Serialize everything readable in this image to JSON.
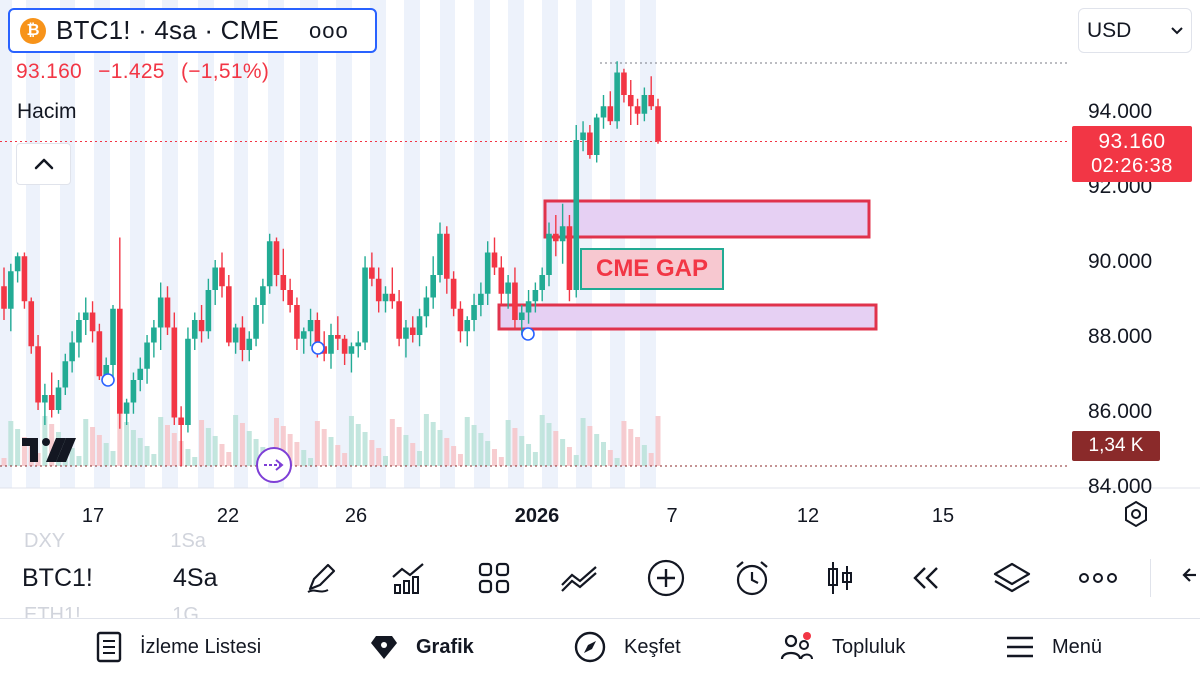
{
  "header": {
    "symbol_title": "BTC1! · 4sa · CME",
    "more_label": "ooo",
    "btc_glyph": "₿",
    "last_price": "93.160",
    "change": "−1.425",
    "change_pct": "(−1,51%)",
    "volume_label": "Hacim",
    "currency": "USD"
  },
  "price_tags": {
    "last_price": "93.160",
    "countdown": "02:26:38",
    "volume": "1,34 K"
  },
  "annotation": {
    "gap_label": "CME GAP"
  },
  "colors": {
    "up": "#22ab94",
    "down": "#f23645",
    "accent": "#2962ff",
    "gap_zone_fill": "#e6d0f3",
    "gap_zone_border": "#e0334c",
    "session_band": "#e6ecfa"
  },
  "chart_data": {
    "type": "candlestick",
    "y_axis": {
      "ticks": [
        "94.000",
        "92.000",
        "90.000",
        "88.000",
        "86.000",
        "84.000"
      ],
      "values": [
        94000,
        92000,
        90000,
        88000,
        86000,
        84000
      ]
    },
    "x_axis": {
      "ticks": [
        "17",
        "22",
        "26",
        "2026",
        "7",
        "12",
        "15"
      ],
      "bold_tick": "2026"
    },
    "last_price": 93160,
    "gap_zones": [
      {
        "low": 90700,
        "high": 91600
      },
      {
        "low": 88200,
        "high": 88800
      }
    ],
    "candles_ohlc": [
      [
        89300,
        89800,
        88400,
        88700
      ],
      [
        88700,
        89900,
        88100,
        89700
      ],
      [
        89700,
        90200,
        89400,
        90100
      ],
      [
        90100,
        90200,
        88700,
        88900
      ],
      [
        88900,
        89000,
        87500,
        87700
      ],
      [
        87700,
        88000,
        86000,
        86200
      ],
      [
        86200,
        86700,
        85600,
        86400
      ],
      [
        86400,
        87000,
        85800,
        86000
      ],
      [
        86000,
        86800,
        85900,
        86600
      ],
      [
        86600,
        87500,
        86400,
        87300
      ],
      [
        87300,
        88100,
        87000,
        87800
      ],
      [
        87800,
        88600,
        87400,
        88400
      ],
      [
        88400,
        89000,
        88000,
        88600
      ],
      [
        88600,
        88900,
        87800,
        88100
      ],
      [
        88100,
        88300,
        86800,
        86900
      ],
      [
        86900,
        87400,
        86700,
        87200
      ],
      [
        87200,
        88800,
        86900,
        88700
      ],
      [
        88700,
        90600,
        85500,
        85900
      ],
      [
        85900,
        86300,
        85600,
        86200
      ],
      [
        86200,
        87000,
        85900,
        86800
      ],
      [
        86800,
        87400,
        86500,
        87100
      ],
      [
        87100,
        88000,
        86700,
        87800
      ],
      [
        87800,
        88400,
        87400,
        88200
      ],
      [
        88200,
        89400,
        87600,
        89000
      ],
      [
        89000,
        89300,
        88000,
        88200
      ],
      [
        88200,
        88600,
        85600,
        85800
      ],
      [
        85800,
        86100,
        84500,
        85600
      ],
      [
        85600,
        88200,
        85400,
        87900
      ],
      [
        87900,
        88600,
        87600,
        88400
      ],
      [
        88400,
        88800,
        87800,
        88100
      ],
      [
        88100,
        89500,
        87900,
        89200
      ],
      [
        89200,
        90000,
        88800,
        89800
      ],
      [
        89800,
        90200,
        89000,
        89300
      ],
      [
        89300,
        89600,
        87700,
        87800
      ],
      [
        87800,
        88300,
        87500,
        88200
      ],
      [
        88200,
        88500,
        87300,
        87600
      ],
      [
        87600,
        88100,
        87300,
        87900
      ],
      [
        87900,
        89000,
        87700,
        88800
      ],
      [
        88800,
        89500,
        88300,
        89300
      ],
      [
        89300,
        90700,
        89100,
        90500
      ],
      [
        90500,
        90600,
        89300,
        89600
      ],
      [
        89600,
        90300,
        88900,
        89200
      ],
      [
        89200,
        89500,
        88600,
        88800
      ],
      [
        88800,
        89000,
        87600,
        87900
      ],
      [
        87900,
        88200,
        87500,
        88100
      ],
      [
        88100,
        88700,
        87700,
        88400
      ],
      [
        88400,
        88600,
        87400,
        87700
      ],
      [
        87700,
        88100,
        87300,
        87500
      ],
      [
        87500,
        88300,
        87100,
        88000
      ],
      [
        88000,
        88500,
        87600,
        87900
      ],
      [
        87900,
        88000,
        87200,
        87500
      ],
      [
        87500,
        87800,
        87000,
        87700
      ],
      [
        87700,
        88100,
        87400,
        87800
      ],
      [
        87800,
        90100,
        87600,
        89800
      ],
      [
        89800,
        90200,
        89300,
        89500
      ],
      [
        89500,
        89800,
        88600,
        88900
      ],
      [
        88900,
        89300,
        88600,
        89100
      ],
      [
        89100,
        89800,
        88700,
        88900
      ],
      [
        88900,
        89200,
        87700,
        87900
      ],
      [
        87900,
        88400,
        87400,
        88200
      ],
      [
        88200,
        88500,
        87800,
        88000
      ],
      [
        88000,
        88700,
        87700,
        88500
      ],
      [
        88500,
        89300,
        88200,
        89000
      ],
      [
        89000,
        90100,
        88700,
        89600
      ],
      [
        89600,
        91000,
        89400,
        90700
      ],
      [
        90700,
        90900,
        89100,
        89500
      ],
      [
        89500,
        89700,
        88500,
        88700
      ],
      [
        88700,
        88900,
        87800,
        88100
      ],
      [
        88100,
        88500,
        87700,
        88400
      ],
      [
        88400,
        89100,
        88100,
        88800
      ],
      [
        88800,
        89400,
        88500,
        89100
      ],
      [
        89100,
        90500,
        88800,
        90200
      ],
      [
        90200,
        90600,
        89600,
        89800
      ],
      [
        89800,
        90100,
        88800,
        89100
      ],
      [
        89100,
        89600,
        88700,
        89400
      ],
      [
        89400,
        89800,
        88200,
        88400
      ],
      [
        88400,
        88800,
        88000,
        88600
      ],
      [
        88600,
        89200,
        88300,
        88900
      ],
      [
        88900,
        89400,
        88600,
        89200
      ],
      [
        89200,
        89800,
        88900,
        89600
      ],
      [
        89600,
        91000,
        89300,
        90700
      ],
      [
        90700,
        91200,
        90100,
        90500
      ],
      [
        90500,
        91500,
        89900,
        90900
      ],
      [
        90900,
        91200,
        88900,
        89200
      ],
      [
        89200,
        93600,
        89000,
        93200
      ],
      [
        93200,
        93700,
        92900,
        93400
      ],
      [
        93400,
        93600,
        92700,
        92800
      ],
      [
        92800,
        93900,
        92600,
        93800
      ],
      [
        93800,
        94400,
        93500,
        94100
      ],
      [
        94100,
        94500,
        93600,
        93700
      ],
      [
        93700,
        95300,
        93500,
        95000
      ],
      [
        95000,
        95100,
        94200,
        94400
      ],
      [
        94400,
        94800,
        93600,
        94100
      ],
      [
        94100,
        94300,
        93600,
        93900
      ],
      [
        93900,
        94600,
        93700,
        94400
      ],
      [
        94400,
        94900,
        94000,
        94100
      ],
      [
        94100,
        94300,
        93100,
        93160
      ]
    ]
  },
  "toolbar": {
    "symbol": "BTC1!",
    "interval": "4Sa",
    "ghost_symbol_1": "DXY",
    "ghost_interval_1": "1Sa",
    "ghost_symbol_2": "ETH1!",
    "ghost_interval_2": "1G"
  },
  "bottom_nav": {
    "watchlist": "İzleme Listesi",
    "chart": "Grafik",
    "explore": "Keşfet",
    "community": "Topluluk",
    "menu": "Menü"
  }
}
